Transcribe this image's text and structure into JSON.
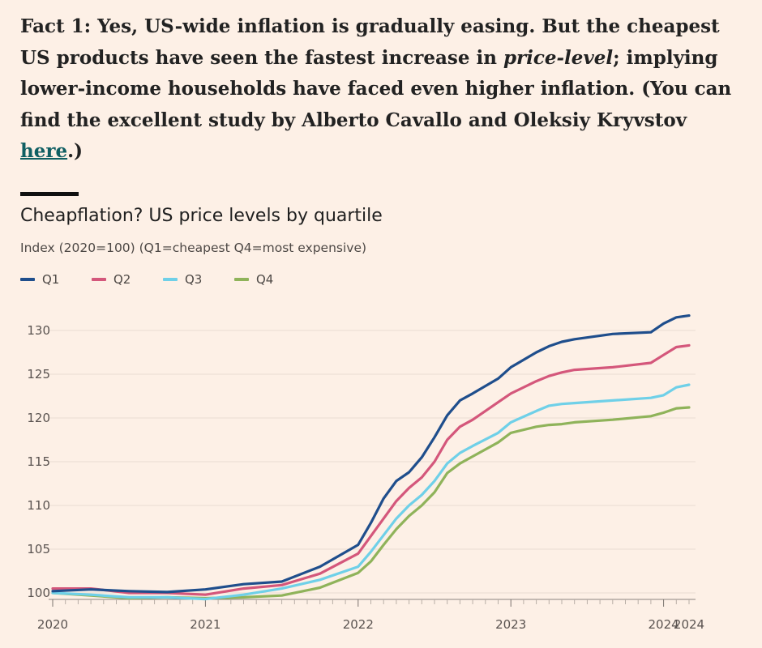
{
  "article": {
    "p1": "Fact 1: Yes, US-wide inflation is gradually easing. But the cheapest US products have seen the fastest increase in ",
    "em": "price-level",
    "p2": "; implying lower-income households have faced even higher inflation. (You can find the excellent study by Alberto Cavallo and Oleksiy Kryvstov ",
    "link_text": "here",
    "p3": ".)"
  },
  "chart_data": {
    "type": "line",
    "title": "Cheapflation? US price levels by quartile",
    "subtitle": "Index (2020=100) (Q1=cheapest Q4=most expensive)",
    "xlabel": "",
    "ylabel": "",
    "ylim": [
      99,
      132
    ],
    "xlim": [
      "2020-01",
      "2024-03"
    ],
    "y_ticks": [
      100,
      105,
      110,
      115,
      120,
      125,
      130
    ],
    "x_ticks": [
      "2020",
      "2021",
      "2022",
      "2023",
      "2024",
      "2024"
    ],
    "grid": true,
    "legend_position": "top-left",
    "x": [
      "2020-01",
      "2020-04",
      "2020-07",
      "2020-10",
      "2021-01",
      "2021-04",
      "2021-07",
      "2021-10",
      "2022-01",
      "2022-02",
      "2022-03",
      "2022-04",
      "2022-05",
      "2022-06",
      "2022-07",
      "2022-08",
      "2022-09",
      "2022-10",
      "2022-12",
      "2023-01",
      "2023-03",
      "2023-04",
      "2023-05",
      "2023-06",
      "2023-09",
      "2023-12",
      "2024-01",
      "2024-02",
      "2024-03"
    ],
    "series": [
      {
        "name": "Q1",
        "color": "#1f4e8c",
        "values": [
          100.2,
          100.4,
          100.2,
          100.1,
          100.4,
          101.0,
          101.3,
          103.0,
          105.5,
          108.0,
          110.8,
          112.8,
          113.8,
          115.5,
          117.8,
          120.3,
          122.0,
          122.8,
          124.5,
          125.8,
          127.5,
          128.2,
          128.7,
          129.0,
          129.6,
          129.8,
          130.8,
          131.5,
          131.7
        ]
      },
      {
        "name": "Q2",
        "color": "#d4577b",
        "values": [
          100.5,
          100.5,
          100.0,
          100.0,
          99.8,
          100.5,
          100.9,
          102.2,
          104.5,
          106.5,
          108.5,
          110.5,
          112.0,
          113.2,
          115.0,
          117.5,
          119.0,
          119.8,
          121.8,
          122.8,
          124.2,
          124.8,
          125.2,
          125.5,
          125.8,
          126.3,
          127.2,
          128.1,
          128.3
        ]
      },
      {
        "name": "Q3",
        "color": "#6fd0e8",
        "values": [
          100.0,
          99.8,
          99.5,
          99.5,
          99.3,
          99.8,
          100.5,
          101.5,
          103.0,
          104.7,
          106.6,
          108.5,
          110.0,
          111.2,
          112.8,
          114.8,
          116.0,
          116.8,
          118.3,
          119.5,
          120.8,
          121.4,
          121.6,
          121.7,
          122.0,
          122.3,
          122.6,
          123.5,
          123.8
        ]
      },
      {
        "name": "Q4",
        "color": "#8fb35a",
        "values": [
          100.0,
          99.7,
          99.4,
          99.5,
          99.4,
          99.5,
          99.7,
          100.6,
          102.3,
          103.6,
          105.5,
          107.3,
          108.8,
          110.0,
          111.5,
          113.7,
          114.8,
          115.6,
          117.2,
          118.3,
          119.0,
          119.2,
          119.3,
          119.5,
          119.8,
          120.2,
          120.6,
          121.1,
          121.2
        ]
      }
    ]
  }
}
